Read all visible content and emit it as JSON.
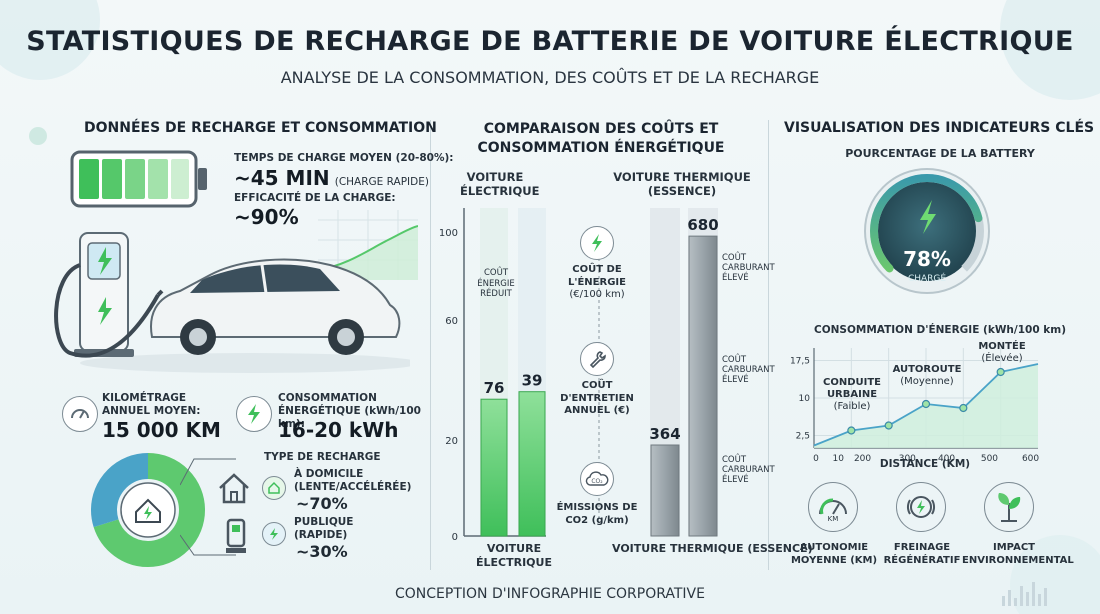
{
  "header": {
    "title": "STATISTIQUES DE RECHARGE DE BATTERIE DE VOITURE ÉLECTRIQUE",
    "subtitle": "ANALYSE DE LA CONSOMMATION, DES COÛTS ET DE LA RECHARGE"
  },
  "left": {
    "title": "DONNÉES DE RECHARGE ET CONSOMMATION",
    "charge_time_label": "TEMPS DE CHARGE MOYEN (20-80%):",
    "charge_time_value": "~45 MIN",
    "charge_time_note": "(CHARGE RAPIDE)",
    "efficiency_label": "EFFICACITÉ DE LA CHARGE:",
    "efficiency_value": "~90%",
    "mileage_label": "KILOMÉTRAGE ANNUEL MOYEN:",
    "mileage_value": "15 000 KM",
    "consumption_label": "CONSOMMATION ÉNERGÉTIQUE (kWh/100 km):",
    "consumption_value": "16-20 kWh",
    "recharge_type_label": "TYPE DE RECHARGE",
    "home_label": "À DOMICILE (LENTE/ACCÉLÉRÉE)",
    "home_value": "~70%",
    "public_label": "PUBLIQUE (RAPIDE)",
    "public_value": "~30%",
    "recharge_split": {
      "home": 70,
      "public": 30
    }
  },
  "middle": {
    "title_line1": "COMPARAISON DES COÛTS ET",
    "title_line2": "CONSOMMATION ÉNERGÉTIQUE",
    "ev_header_1": "VOITURE",
    "ev_header_2": "ÉLECTRIQUE",
    "ice_header_1": "VOITURE THERMIQUE",
    "ice_header_2": "(ESSENCE)",
    "ev_low_cost_1": "COÛT",
    "ev_low_cost_2": "ÉNERGIE",
    "ev_low_cost_3": "RÉDUIT",
    "ice_high_1": "COÛT",
    "ice_high_2": "CARBURANT",
    "ice_high_3": "ÉLEVÉ",
    "metric_energy_1": "COÛT DE",
    "metric_energy_2": "L'ÉNERGIE",
    "metric_energy_3": "(€/100 km)",
    "metric_maint_1": "COÛT",
    "metric_maint_2": "D'ENTRETIEN",
    "metric_maint_3": "ANNUEL (€)",
    "metric_co2_1": "ÉMISSIONS DE",
    "metric_co2_2": "CO2 (g/km)",
    "co2_icon_text": "CO₂",
    "ev_footer_1": "VOITURE",
    "ev_footer_2": "ÉLECTRIQUE",
    "ice_footer": "VOITURE THERMIQUE (ESSENCE)"
  },
  "right": {
    "title": "VISUALISATION DES INDICATEURS CLÉS",
    "gauge_title": "POURCENTAGE DE LA BATTERY",
    "gauge_value": "78%",
    "gauge_percent": 78,
    "gauge_caption": "CHARGÉ",
    "line_title": "CONSOMMATION D'ÉNERGIE (kWh/100 km)",
    "annot_urban_1": "CONDUITE",
    "annot_urban_2": "URBAINE",
    "annot_urban_3": "(Faible)",
    "annot_highway_1": "AUTOROUTE",
    "annot_highway_2": "(Moyenne)",
    "annot_climb_1": "MONTÉE",
    "annot_climb_2": "(Élevée)",
    "km_icon_text": "KM",
    "icon_autonomy_1": "AUTONOMIE",
    "icon_autonomy_2": "MOYENNE (KM)",
    "icon_regen_1": "FREINAGE",
    "icon_regen_2": "RÉGÉNÉRATIF",
    "icon_env_1": "IMPACT",
    "icon_env_2": "ENVIRONNEMENTAL"
  },
  "footer": "CONCEPTION D'INFOGRAPHIE CORPORATIVE",
  "colors": {
    "green": "#3fbf5a",
    "light_green": "#9fe3a7",
    "blue": "#4aa3c8",
    "grey_bar": "#9ba4a9",
    "teal_dark": "#2f5f6b"
  },
  "chart_data": [
    {
      "type": "bar",
      "categories": [
        "VOITURE ÉLECTRIQUE",
        "VOITURE THERMIQUE (ESSENCE)"
      ],
      "series": [
        {
          "values": [
            76,
            364
          ]
        },
        {
          "values": [
            39,
            680
          ]
        }
      ],
      "ytick_labels": [
        "0",
        "20",
        "60",
        "100"
      ],
      "value_labels": [
        "76",
        "39",
        "364",
        "680"
      ]
    },
    {
      "type": "line",
      "title": "CONSOMMATION D'ÉNERGIE (kWh/100 km)",
      "xlabel": "DISTANCE (KM)",
      "x": [
        100,
        200,
        300,
        400,
        500,
        600
      ],
      "y": [
        3.5,
        4.5,
        8.8,
        8.0,
        15.2,
        16.8
      ],
      "xticks": [
        "0",
        "10",
        "200",
        "300",
        "400",
        "500",
        "600"
      ],
      "yticks": [
        "2,5",
        "10",
        "17,5"
      ],
      "xlim": [
        0,
        600
      ],
      "ylim": [
        0,
        20
      ]
    }
  ]
}
